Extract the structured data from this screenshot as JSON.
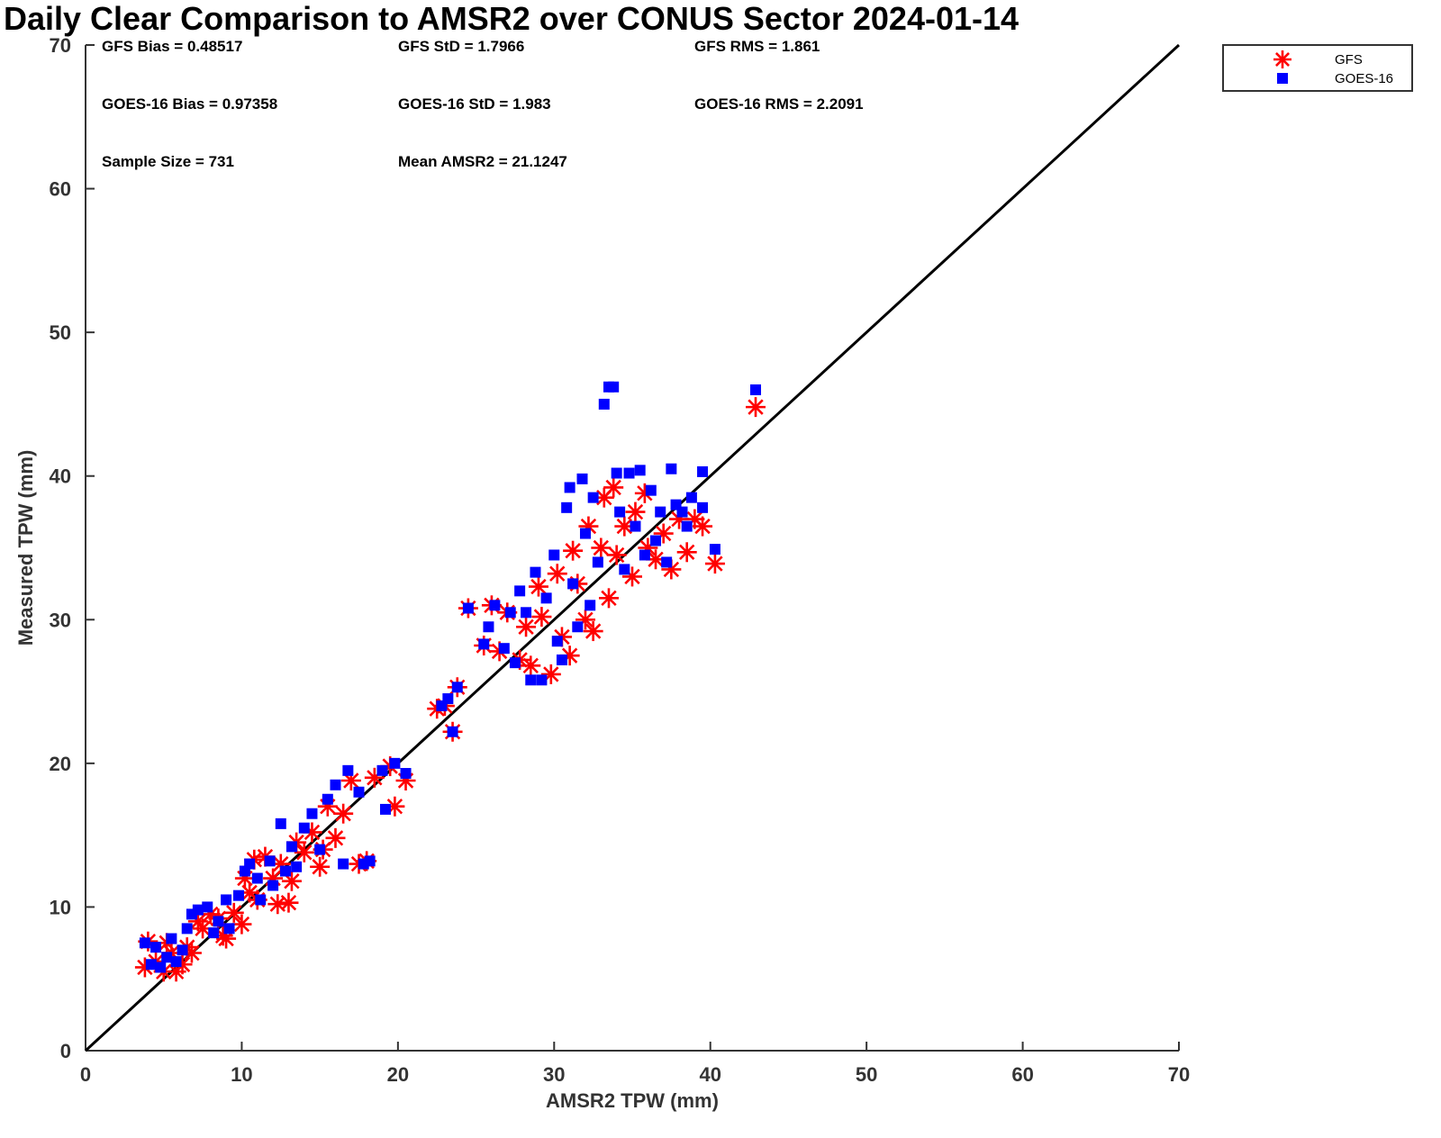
{
  "chart_data": {
    "type": "scatter",
    "title": "Daily Clear Comparison to AMSR2 over CONUS Sector 2024-01-14",
    "xlabel": "AMSR2 TPW (mm)",
    "ylabel": "Measured TPW (mm)",
    "xlim": [
      0,
      70
    ],
    "ylim": [
      0,
      70
    ],
    "xticks": [
      "0",
      "10",
      "20",
      "30",
      "40",
      "50",
      "60",
      "70"
    ],
    "yticks": [
      "0",
      "10",
      "20",
      "30",
      "40",
      "50",
      "60",
      "70"
    ],
    "grid": false,
    "legend_position": "outside-top-right",
    "reference_line": {
      "description": "1:1 line",
      "from": [
        0,
        0
      ],
      "to": [
        70,
        70
      ],
      "color": "#000000"
    },
    "stats": [
      [
        "GFS Bias = 0.48517",
        "GFS StD = 1.7966",
        "GFS RMS = 1.861"
      ],
      [
        "GOES-16 Bias = 0.97358",
        "GOES-16 StD = 1.983",
        "GOES-16 RMS = 2.2091"
      ],
      [
        "Sample Size = 731",
        "Mean AMSR2 = 21.1247",
        ""
      ]
    ],
    "series": [
      {
        "name": "GFS",
        "marker": "asterisk",
        "color": "#ff0000",
        "points": [
          [
            3.8,
            5.8
          ],
          [
            4.0,
            7.6
          ],
          [
            4.5,
            6.2
          ],
          [
            5.0,
            5.5
          ],
          [
            5.2,
            7.5
          ],
          [
            5.5,
            6.8
          ],
          [
            5.8,
            5.5
          ],
          [
            6.2,
            6.0
          ],
          [
            6.5,
            7.2
          ],
          [
            6.8,
            6.8
          ],
          [
            7.2,
            9.0
          ],
          [
            7.5,
            8.5
          ],
          [
            8.0,
            9.5
          ],
          [
            8.5,
            9.2
          ],
          [
            8.8,
            8.0
          ],
          [
            9.0,
            7.8
          ],
          [
            9.5,
            9.6
          ],
          [
            10.0,
            8.8
          ],
          [
            10.2,
            12.0
          ],
          [
            10.5,
            11.0
          ],
          [
            10.8,
            13.3
          ],
          [
            11.0,
            10.5
          ],
          [
            11.5,
            13.5
          ],
          [
            12.0,
            12.0
          ],
          [
            12.3,
            10.2
          ],
          [
            12.5,
            13.0
          ],
          [
            13.0,
            10.3
          ],
          [
            13.2,
            11.8
          ],
          [
            13.5,
            14.5
          ],
          [
            14.0,
            13.8
          ],
          [
            14.5,
            15.2
          ],
          [
            15.0,
            12.8
          ],
          [
            15.2,
            14.0
          ],
          [
            15.5,
            17.0
          ],
          [
            16.0,
            14.8
          ],
          [
            16.5,
            16.5
          ],
          [
            17.0,
            18.8
          ],
          [
            17.5,
            13.0
          ],
          [
            18.0,
            13.2
          ],
          [
            18.5,
            19.0
          ],
          [
            19.5,
            19.8
          ],
          [
            19.8,
            17.0
          ],
          [
            20.5,
            18.8
          ],
          [
            22.5,
            23.8
          ],
          [
            23.0,
            24.0
          ],
          [
            23.5,
            22.2
          ],
          [
            23.8,
            25.3
          ],
          [
            24.5,
            30.8
          ],
          [
            25.5,
            28.2
          ],
          [
            26.0,
            31.0
          ],
          [
            26.5,
            27.8
          ],
          [
            27.0,
            30.5
          ],
          [
            27.8,
            27.2
          ],
          [
            28.2,
            29.5
          ],
          [
            28.5,
            26.8
          ],
          [
            29.0,
            32.3
          ],
          [
            29.2,
            30.2
          ],
          [
            29.8,
            26.2
          ],
          [
            30.2,
            33.2
          ],
          [
            30.5,
            28.8
          ],
          [
            31.0,
            27.5
          ],
          [
            31.2,
            34.8
          ],
          [
            31.5,
            32.5
          ],
          [
            32.0,
            30.0
          ],
          [
            32.2,
            36.5
          ],
          [
            32.5,
            29.2
          ],
          [
            33.0,
            35.0
          ],
          [
            33.2,
            38.5
          ],
          [
            33.5,
            31.5
          ],
          [
            33.8,
            39.2
          ],
          [
            34.0,
            34.5
          ],
          [
            34.5,
            36.5
          ],
          [
            35.0,
            33.0
          ],
          [
            35.2,
            37.5
          ],
          [
            35.8,
            38.8
          ],
          [
            36.0,
            35.0
          ],
          [
            36.5,
            34.2
          ],
          [
            37.0,
            36.0
          ],
          [
            37.5,
            33.5
          ],
          [
            38.0,
            37.0
          ],
          [
            38.5,
            34.7
          ],
          [
            39.0,
            37.0
          ],
          [
            39.5,
            36.5
          ],
          [
            40.3,
            33.9
          ],
          [
            42.9,
            44.8
          ]
        ]
      },
      {
        "name": "GOES-16",
        "marker": "square",
        "color": "#0000ff",
        "points": [
          [
            3.8,
            7.5
          ],
          [
            4.2,
            6.0
          ],
          [
            4.5,
            7.2
          ],
          [
            4.8,
            5.8
          ],
          [
            5.2,
            6.5
          ],
          [
            5.5,
            7.8
          ],
          [
            5.8,
            6.2
          ],
          [
            6.2,
            7.0
          ],
          [
            6.5,
            8.5
          ],
          [
            6.8,
            9.5
          ],
          [
            7.2,
            9.8
          ],
          [
            7.8,
            10.0
          ],
          [
            8.2,
            8.2
          ],
          [
            8.5,
            9.0
          ],
          [
            9.0,
            10.5
          ],
          [
            9.2,
            8.5
          ],
          [
            9.8,
            10.8
          ],
          [
            10.2,
            12.5
          ],
          [
            10.5,
            13.0
          ],
          [
            11.0,
            12.0
          ],
          [
            11.2,
            10.5
          ],
          [
            11.8,
            13.2
          ],
          [
            12.0,
            11.5
          ],
          [
            12.5,
            15.8
          ],
          [
            12.8,
            12.5
          ],
          [
            13.2,
            14.2
          ],
          [
            13.5,
            12.8
          ],
          [
            14.0,
            15.5
          ],
          [
            14.5,
            16.5
          ],
          [
            15.0,
            14.0
          ],
          [
            15.5,
            17.5
          ],
          [
            16.0,
            18.5
          ],
          [
            16.5,
            13.0
          ],
          [
            16.8,
            19.5
          ],
          [
            17.5,
            18.0
          ],
          [
            17.8,
            13.0
          ],
          [
            18.2,
            13.2
          ],
          [
            19.0,
            19.5
          ],
          [
            19.2,
            16.8
          ],
          [
            19.8,
            20.0
          ],
          [
            20.5,
            19.3
          ],
          [
            22.8,
            24.0
          ],
          [
            23.2,
            24.5
          ],
          [
            23.5,
            22.2
          ],
          [
            23.8,
            25.3
          ],
          [
            24.5,
            30.8
          ],
          [
            25.5,
            28.3
          ],
          [
            25.8,
            29.5
          ],
          [
            26.2,
            31.0
          ],
          [
            26.8,
            28.0
          ],
          [
            27.2,
            30.5
          ],
          [
            27.5,
            27.0
          ],
          [
            27.8,
            32.0
          ],
          [
            28.2,
            30.5
          ],
          [
            28.5,
            25.8
          ],
          [
            28.8,
            33.3
          ],
          [
            29.2,
            25.8
          ],
          [
            29.5,
            31.5
          ],
          [
            30.0,
            34.5
          ],
          [
            30.2,
            28.5
          ],
          [
            30.5,
            27.2
          ],
          [
            30.8,
            37.8
          ],
          [
            31.0,
            39.2
          ],
          [
            31.2,
            32.5
          ],
          [
            31.5,
            29.5
          ],
          [
            31.8,
            39.8
          ],
          [
            32.0,
            36.0
          ],
          [
            32.3,
            31.0
          ],
          [
            32.5,
            38.5
          ],
          [
            32.8,
            34.0
          ],
          [
            33.2,
            45.0
          ],
          [
            33.5,
            46.2
          ],
          [
            33.8,
            46.2
          ],
          [
            34.0,
            40.2
          ],
          [
            34.2,
            37.5
          ],
          [
            34.5,
            33.5
          ],
          [
            34.8,
            40.2
          ],
          [
            35.2,
            36.5
          ],
          [
            35.5,
            40.4
          ],
          [
            35.8,
            34.5
          ],
          [
            36.2,
            39.0
          ],
          [
            36.5,
            35.5
          ],
          [
            36.8,
            37.5
          ],
          [
            37.2,
            34.0
          ],
          [
            37.5,
            40.5
          ],
          [
            37.8,
            38.0
          ],
          [
            38.2,
            37.5
          ],
          [
            38.5,
            36.5
          ],
          [
            38.8,
            38.5
          ],
          [
            39.5,
            40.3
          ],
          [
            39.5,
            37.8
          ],
          [
            40.3,
            34.9
          ],
          [
            42.9,
            46.0
          ]
        ]
      }
    ]
  }
}
